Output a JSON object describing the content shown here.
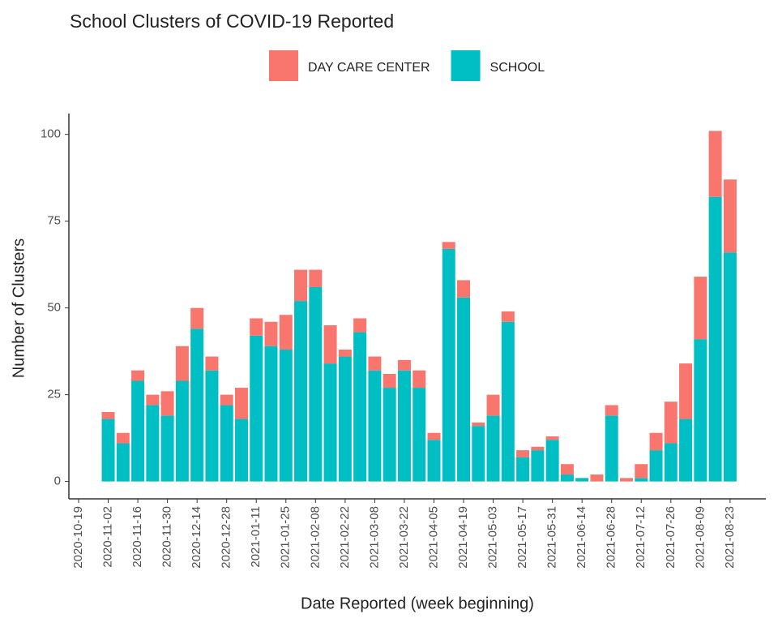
{
  "chart_data": {
    "type": "stacked_bar",
    "title": "School Clusters of COVID-19 Reported",
    "x_label": "Date Reported (week beginning)",
    "y_label": "Number of Clusters",
    "categories": [
      "2020-10-19",
      null,
      "2020-11-02",
      null,
      "2020-11-16",
      null,
      "2020-11-30",
      null,
      "2020-12-14",
      null,
      "2020-12-28",
      null,
      "2021-01-11",
      null,
      "2021-01-25",
      null,
      "2021-02-08",
      null,
      "2021-02-22",
      null,
      "2021-03-08",
      null,
      "2021-03-22",
      null,
      "2021-04-05",
      null,
      "2021-04-19",
      null,
      "2021-05-03",
      null,
      "2021-05-17",
      null,
      "2021-05-31",
      null,
      "2021-06-14",
      null,
      "2021-06-28",
      null,
      "2021-07-12",
      null,
      "2021-07-26",
      null,
      "2021-08-09",
      null,
      "2021-08-23"
    ],
    "series": [
      {
        "name": "DAY CARE CENTER",
        "color": "#F8766D",
        "values": [
          null,
          null,
          2,
          3,
          3,
          3,
          7,
          10,
          6,
          4,
          3,
          9,
          5,
          7,
          10,
          9,
          5,
          11,
          2,
          4,
          4,
          4,
          3,
          5,
          2,
          2,
          5,
          1,
          6,
          3,
          2,
          1,
          1,
          3,
          0,
          2,
          3,
          1,
          4,
          5,
          12,
          16,
          18,
          19,
          21
        ]
      },
      {
        "name": "SCHOOL",
        "color": "#00BFC4",
        "values": [
          null,
          null,
          18,
          11,
          29,
          22,
          19,
          29,
          44,
          32,
          22,
          18,
          42,
          39,
          38,
          52,
          56,
          34,
          36,
          43,
          32,
          27,
          32,
          27,
          12,
          67,
          53,
          16,
          19,
          46,
          7,
          9,
          12,
          2,
          1,
          0,
          19,
          0,
          1,
          9,
          11,
          18,
          41,
          82,
          66
        ]
      }
    ],
    "ylim": [
      -5,
      106
    ],
    "yticks": [
      0,
      25,
      50,
      75,
      100
    ],
    "grid": false,
    "legend": "top"
  }
}
